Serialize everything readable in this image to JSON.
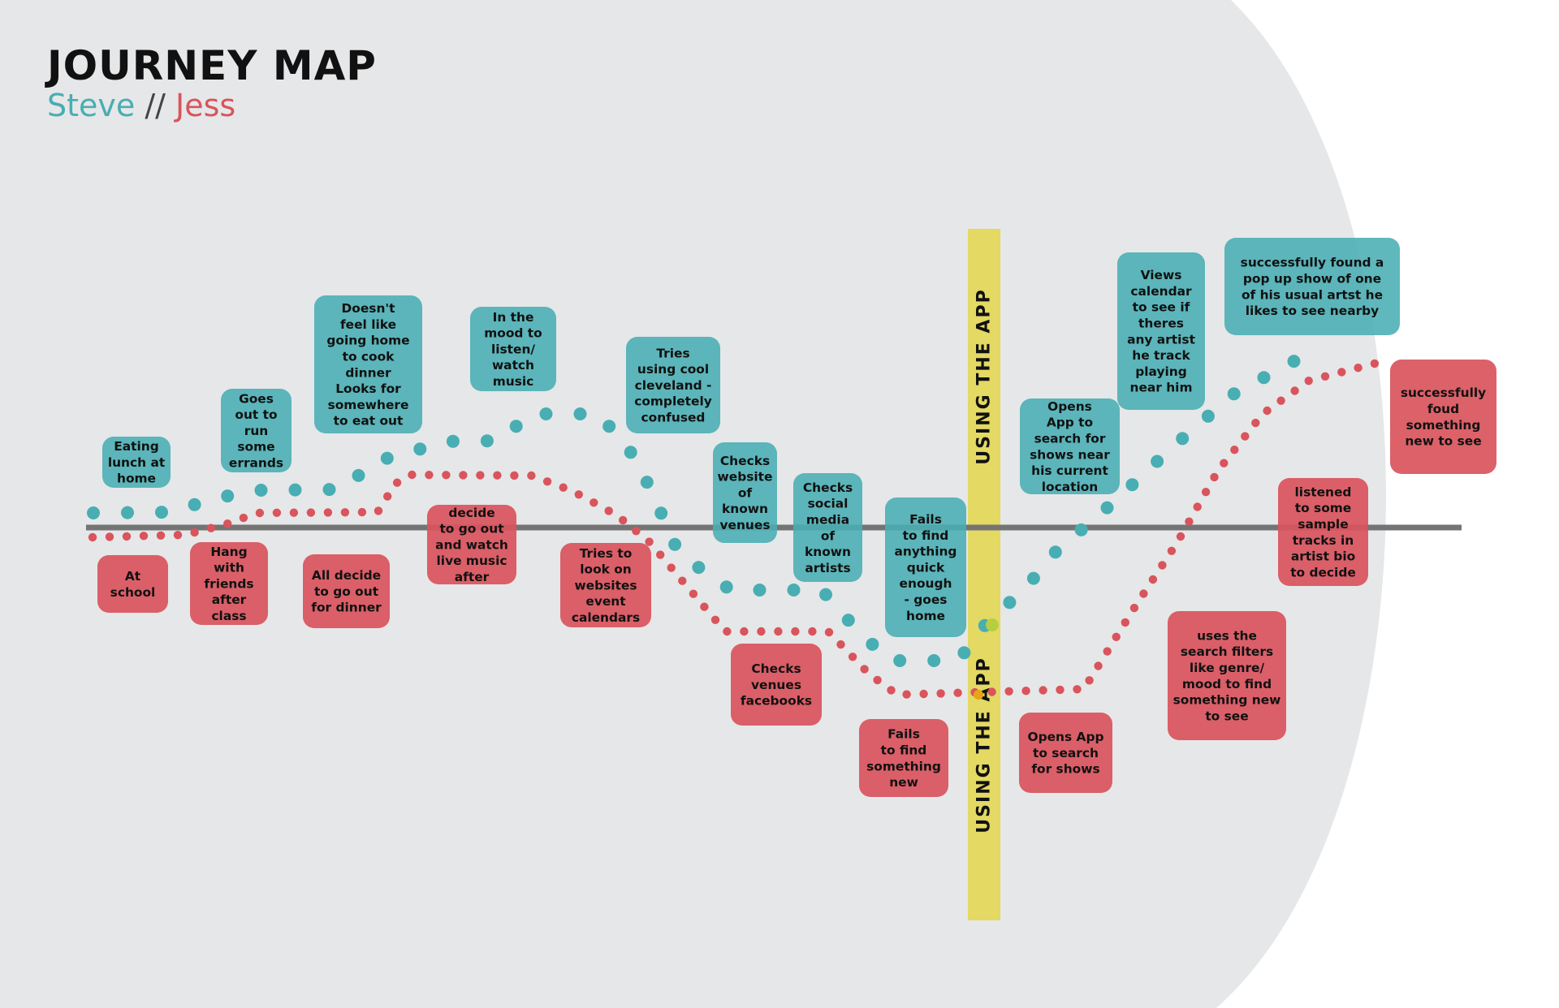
{
  "title": "JOURNEY MAP",
  "subtitle": {
    "steve": "Steve",
    "separator": " // ",
    "jess": "Jess"
  },
  "colors": {
    "steve": "#48aeb3",
    "jess": "#d9545c",
    "background_arc": "#e6e7e8",
    "app_band": "#e3d963",
    "axis": "#747474",
    "box_text": "#111111"
  },
  "app_label": "USING THE APP",
  "steve_notes": [
    "Eating\nlunch at\nhome",
    "Goes\nout to\nrun\nsome\nerrands",
    "Doesn't\nfeel like\ngoing home\nto cook\ndinner\nLooks for\nsomewhere\nto eat out",
    "In the\nmood to\nlisten/\nwatch\nmusic",
    "Tries\nusing cool\ncleveland -\ncompletely\nconfused",
    "Checks\nwebsite\nof\nknown\nvenues",
    "Checks\nsocial\nmedia\nof\nknown\nartists",
    "Fails\nto find\nanything\nquick\nenough\n- goes\nhome",
    "Opens\nApp to\nsearch for\nshows near\nhis current\nlocation",
    "Views\ncalendar\nto see if\ntheres\nany artist\nhe track\nplaying\nnear him",
    "successfully found a\npop up show of one\nof his usual artst he\nlikes to see nearby"
  ],
  "jess_notes": [
    "At\nschool",
    "Hang\nwith\nfriends\nafter\nclass",
    "All decide\nto go out\nfor dinner",
    "decide\nto go out\nand watch\nlive music\nafter",
    "Tries to\nlook on\nwebsites\nevent\ncalendars",
    "Checks\nvenues\nfacebooks",
    "Fails\nto find\nsomething\nnew",
    "Opens App\nto search\nfor shows",
    "uses the\nsearch filters\nlike genre/\nmood to find\nsomething new\nto see",
    "listened\nto some\nsample\ntracks in\nartist bio\nto decide",
    "successfully\nfoud\nsomething\nnew to see"
  ]
}
